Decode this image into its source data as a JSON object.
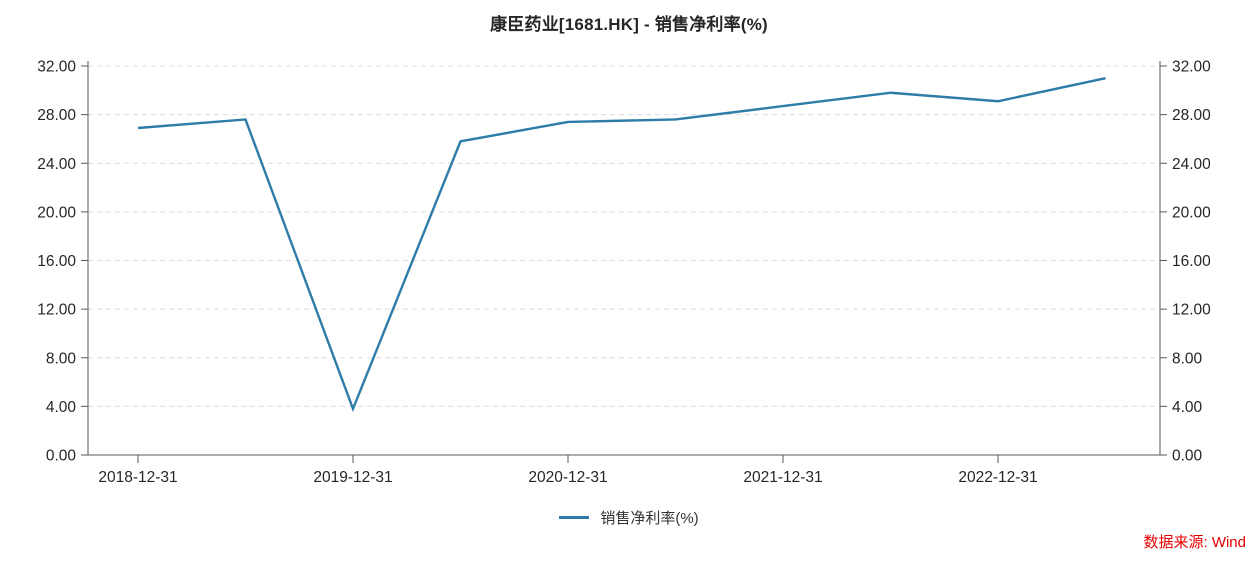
{
  "chart_data": {
    "type": "line",
    "title": "康臣药业[1681.HK] - 销售净利率(%)",
    "xlabel": "",
    "ylabel": "",
    "ylim": [
      0,
      32
    ],
    "y_ticks": [
      0,
      4,
      8,
      12,
      16,
      20,
      24,
      28,
      32
    ],
    "y_tick_labels": [
      "0.00",
      "4.00",
      "8.00",
      "12.00",
      "16.00",
      "20.00",
      "24.00",
      "28.00",
      "32.00"
    ],
    "x_tick_labels": [
      "2018-12-31",
      "2019-12-31",
      "2020-12-31",
      "2021-12-31",
      "2022-12-31"
    ],
    "dual_y_axis": true,
    "grid": "horizontal-dashed",
    "legend_position": "bottom-center",
    "series": [
      {
        "name": "销售净利率(%)",
        "color": "#2e7ca7",
        "x": [
          "2018-12-31",
          "2019-06-30",
          "2019-12-31",
          "2020-06-30",
          "2020-12-31",
          "2021-06-30",
          "2021-12-31",
          "2022-06-30",
          "2022-12-31",
          "2023-06-30"
        ],
        "values": [
          26.9,
          27.6,
          3.8,
          25.8,
          27.4,
          27.6,
          28.7,
          29.8,
          29.1,
          31.0
        ]
      }
    ]
  },
  "legend": {
    "label": "销售净利率(%)"
  },
  "footer": {
    "source": "数据来源: Wind",
    "source_color": "#e60000"
  },
  "style_colors": {
    "axis": "#595959",
    "gridline": "#dcdcdc",
    "tick_label": "#262626"
  }
}
